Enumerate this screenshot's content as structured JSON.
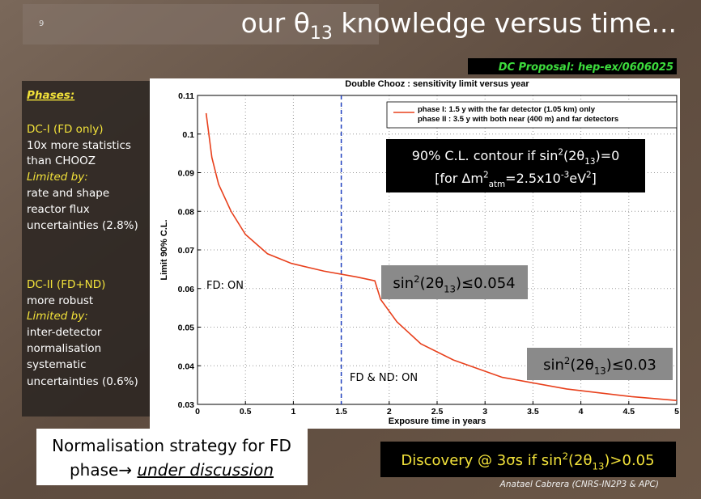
{
  "slide_number": "9",
  "title": {
    "text": "our θ",
    "subscript": "13",
    "rest": " knowledge versus time..."
  },
  "reference": "DC Proposal: hep-ex/0606025",
  "phases": {
    "heading": "Phases:",
    "phase_1": {
      "name": "DC-I (FD only)",
      "description": [
        "10x more statistics",
        "than CHOOZ"
      ],
      "limited_by": "Limited by:",
      "limits": [
        "rate and shape",
        "reactor flux",
        "uncertainties (2.8%)"
      ]
    },
    "phase_2": {
      "name": "DC-II (FD+ND)",
      "description": [
        "more robust"
      ],
      "limited_by": "Limited by:",
      "limits": [
        "inter-detector",
        "normalisation",
        "systematic",
        "uncertainties (0.6%)"
      ]
    }
  },
  "chart_data": {
    "type": "line",
    "title": "Double Chooz : sensitivity limit versus year",
    "xlabel": "Exposure time in years",
    "ylabel": "Limit 90% C.L.",
    "x": [
      0.09,
      0.15,
      0.22,
      0.35,
      0.5,
      0.73,
      0.98,
      1.32,
      1.66,
      1.85,
      1.91,
      2.08,
      2.33,
      2.67,
      3.18,
      3.85,
      4.53,
      5
    ],
    "series": [
      {
        "color": "#e8401c",
        "values": [
          0.1054,
          0.0939,
          0.087,
          0.08,
          0.074,
          0.069,
          0.0665,
          0.0645,
          0.063,
          0.062,
          0.0572,
          0.0514,
          0.0457,
          0.0415,
          0.037,
          0.034,
          0.032,
          0.031
        ]
      }
    ],
    "legend": [
      "phase I: 1.5 y with the far detector (1.05 km) only",
      "phase II : 3.5 y with both near (400 m) and far detectors"
    ],
    "xlim": [
      0,
      5
    ],
    "ylim": [
      0.03,
      0.11
    ],
    "xticks": [
      0,
      0.5,
      1,
      1.5,
      2,
      2.5,
      3,
      3.5,
      4,
      4.5,
      5
    ],
    "yticks": [
      0.03,
      0.04,
      0.05,
      0.06,
      0.07,
      0.08,
      0.09,
      0.1,
      0.11
    ],
    "grid": true,
    "vline": {
      "x": 1.5,
      "color": "#1f3fbf"
    },
    "annotations": {
      "contour_line_1": [
        "90% C.L. contour if sin",
        "2",
        "(2θ",
        "13",
        ")=0"
      ],
      "contour_line_2": [
        "[for Δm",
        "2",
        "atm",
        "=2.5x10",
        "-3",
        "eV",
        "2",
        "]"
      ],
      "phase_1_limit": [
        "sin",
        "2",
        "(2θ",
        "13",
        ")≤0.054"
      ],
      "phase_2_limit": [
        "sin",
        "2",
        "(2θ",
        "13",
        ")≤0.03"
      ],
      "phase_1_label": "FD: ON",
      "phase_2_label": "FD & ND: ON"
    }
  },
  "strategy": [
    "Normalisation strategy for FD",
    "phase→ ",
    "under discussion"
  ],
  "discovery": [
    "Discovery @ 3σs if sin",
    "2",
    "(2θ",
    "13",
    ")>0.05"
  ],
  "credit": "Anatael Cabrera (CNRS-IN2P3 & APC)"
}
